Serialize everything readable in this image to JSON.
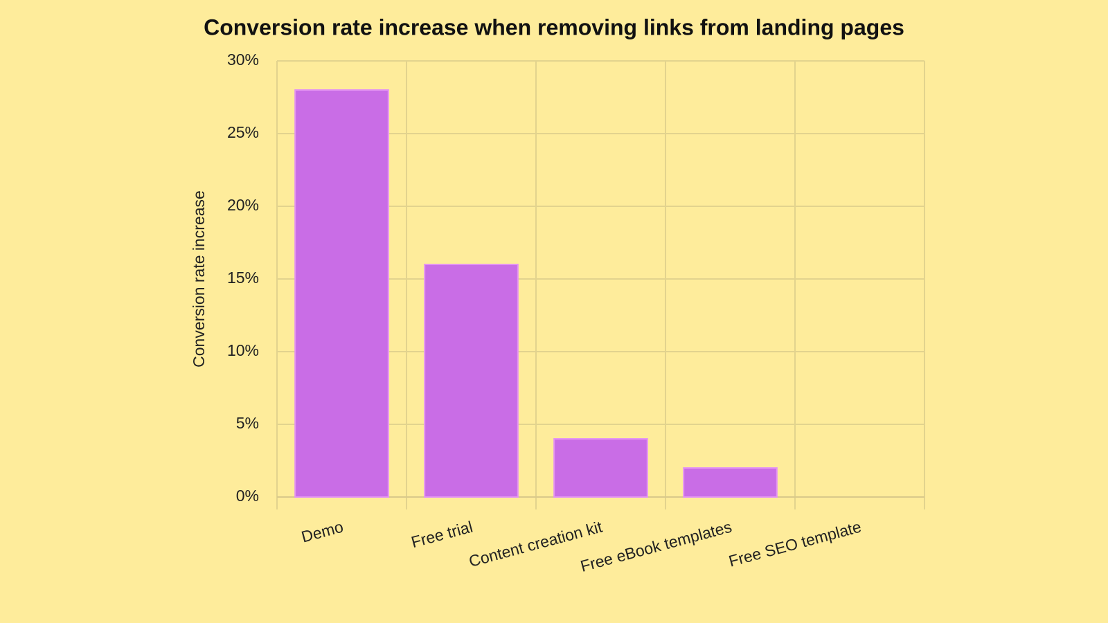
{
  "chart_data": {
    "type": "bar",
    "title": "Conversion rate increase when removing links from landing pages",
    "y_label": "Conversion rate increase",
    "categories": [
      "Demo",
      "Free trial",
      "Content creation kit",
      "Free eBook templates",
      "Free SEO template"
    ],
    "values": [
      28,
      16,
      4,
      2,
      0
    ],
    "color": "#c96de6",
    "ylim": [
      0,
      30
    ],
    "yticks": [
      {
        "value": 0,
        "label": "0%"
      },
      {
        "value": 5,
        "label": "5%"
      },
      {
        "value": 10,
        "label": "10%"
      },
      {
        "value": 15,
        "label": "15%"
      },
      {
        "value": 20,
        "label": "20%"
      },
      {
        "value": 25,
        "label": "25%"
      },
      {
        "value": 30,
        "label": "30%"
      }
    ],
    "grid": true
  }
}
